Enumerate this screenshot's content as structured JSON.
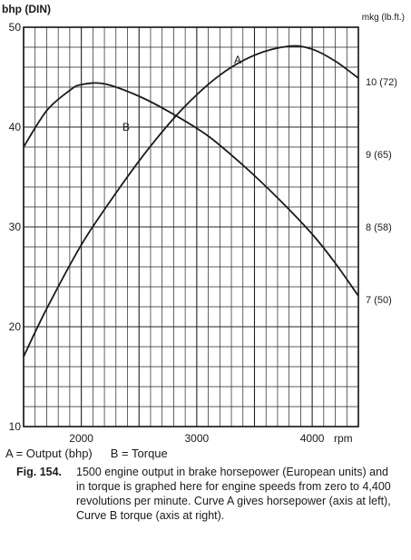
{
  "chart_data": {
    "type": "line",
    "left_axis": {
      "label": "bhp (DIN)",
      "ylim": [
        10,
        50
      ],
      "ticks": [
        10,
        20,
        30,
        40,
        50
      ]
    },
    "right_axis": {
      "label": "mkg (lb.ft.)",
      "ylim": [
        5.25,
        10.75
      ],
      "ticks": [
        {
          "value": 7,
          "label": "7 (50)"
        },
        {
          "value": 8,
          "label": "8 (58)"
        },
        {
          "value": 9,
          "label": "9 (65)"
        },
        {
          "value": 10,
          "label": "10 (72)"
        }
      ]
    },
    "x_axis": {
      "unit": "rpm",
      "xlim": [
        1500,
        4400
      ],
      "ticks": [
        2000,
        3000,
        4000
      ]
    },
    "grid": true,
    "series": [
      {
        "name": "A",
        "axis": "left",
        "color": "#1a1a1a",
        "points": [
          [
            1500,
            17
          ],
          [
            1700,
            21.8
          ],
          [
            2000,
            28.2
          ],
          [
            2300,
            33.4
          ],
          [
            2600,
            38.1
          ],
          [
            2900,
            42.1
          ],
          [
            3200,
            45.2
          ],
          [
            3500,
            47.2
          ],
          [
            3800,
            48.1
          ],
          [
            4000,
            47.8
          ],
          [
            4200,
            46.6
          ],
          [
            4400,
            44.9
          ]
        ]
      },
      {
        "name": "B",
        "axis": "right",
        "color": "#1a1a1a",
        "points": [
          [
            1500,
            9.1
          ],
          [
            1700,
            9.6
          ],
          [
            1900,
            9.88
          ],
          [
            2000,
            9.96
          ],
          [
            2200,
            9.97
          ],
          [
            2500,
            9.8
          ],
          [
            2800,
            9.55
          ],
          [
            3100,
            9.25
          ],
          [
            3400,
            8.85
          ],
          [
            3700,
            8.4
          ],
          [
            4000,
            7.9
          ],
          [
            4200,
            7.5
          ],
          [
            4400,
            7.05
          ]
        ]
      }
    ]
  },
  "legend": {
    "a": "A = Output (bhp)",
    "b": "B = Torque"
  },
  "caption": {
    "fig": "Fig. 154.",
    "text": "1500 engine output in brake horsepower (European units) and in torque is graphed here for engine speeds from zero to 4,400 revolutions per minute. Curve A gives horsepower (axis at left), Curve B torque (axis at right)."
  }
}
